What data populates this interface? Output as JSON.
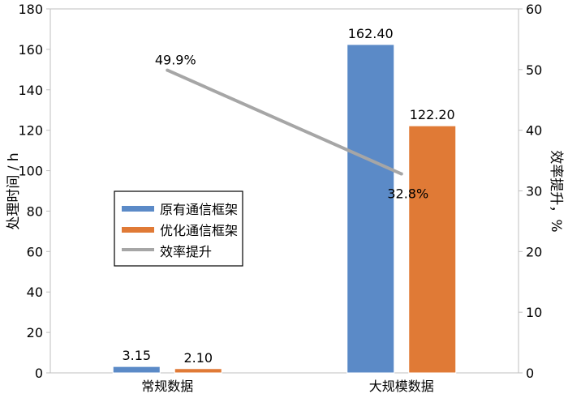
{
  "chart_data": {
    "type": "bar",
    "categories": [
      "常规数据",
      "大规模数据"
    ],
    "series": [
      {
        "name": "原有通信框架",
        "values": [
          3.15,
          162.4
        ],
        "labels": [
          "3.15",
          "162.40"
        ],
        "color": "#5b8ac7"
      },
      {
        "name": "优化通信框架",
        "values": [
          2.1,
          122.2
        ],
        "labels": [
          "2.10",
          "122.20"
        ],
        "color": "#e07a36"
      }
    ],
    "line_series": {
      "name": "效率提升",
      "values": [
        49.9,
        32.8
      ],
      "labels": [
        "49.9%",
        "32.8%"
      ],
      "color": "#a6a6a6",
      "axis": "right"
    },
    "ylabel": "处理时间 / h",
    "y2label": "效率提升，%",
    "ylim": [
      0,
      180
    ],
    "y2lim": [
      0,
      60
    ],
    "yticks": [
      0,
      20,
      40,
      60,
      80,
      100,
      120,
      140,
      160,
      180
    ],
    "y2ticks": [
      0,
      10,
      20,
      30,
      40,
      50,
      60
    ],
    "grid": false,
    "legend_position": "middle-left"
  }
}
